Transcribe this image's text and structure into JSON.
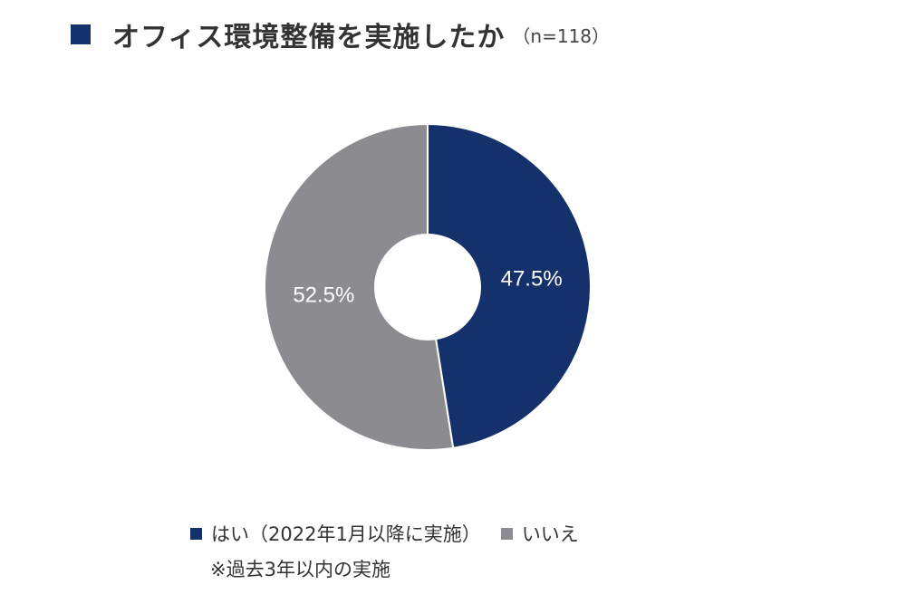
{
  "header": {
    "title": "オフィス環境整備を実施したか",
    "sample_size": "（n=118）"
  },
  "colors": {
    "accent": "#14316b",
    "yes": "#14316b",
    "no": "#8c8b8f",
    "label_text": "#ffffff"
  },
  "chart_data": {
    "type": "pie",
    "variant": "donut",
    "title": "オフィス環境整備を実施したか",
    "n": 118,
    "start": "12 o'clock, clockwise",
    "categories": [
      "はい（2022年1月以降に実施）",
      "いいえ"
    ],
    "values": [
      47.5,
      52.5
    ],
    "labels": [
      "47.5%",
      "52.5%"
    ],
    "colors": [
      "#14316b",
      "#8c8b8f"
    ],
    "legend_position": "bottom"
  },
  "legend": {
    "items": [
      {
        "label": "はい（2022年1月以降に実施）"
      },
      {
        "label": "いいえ"
      }
    ],
    "note": "※過去3年以内の実施"
  }
}
